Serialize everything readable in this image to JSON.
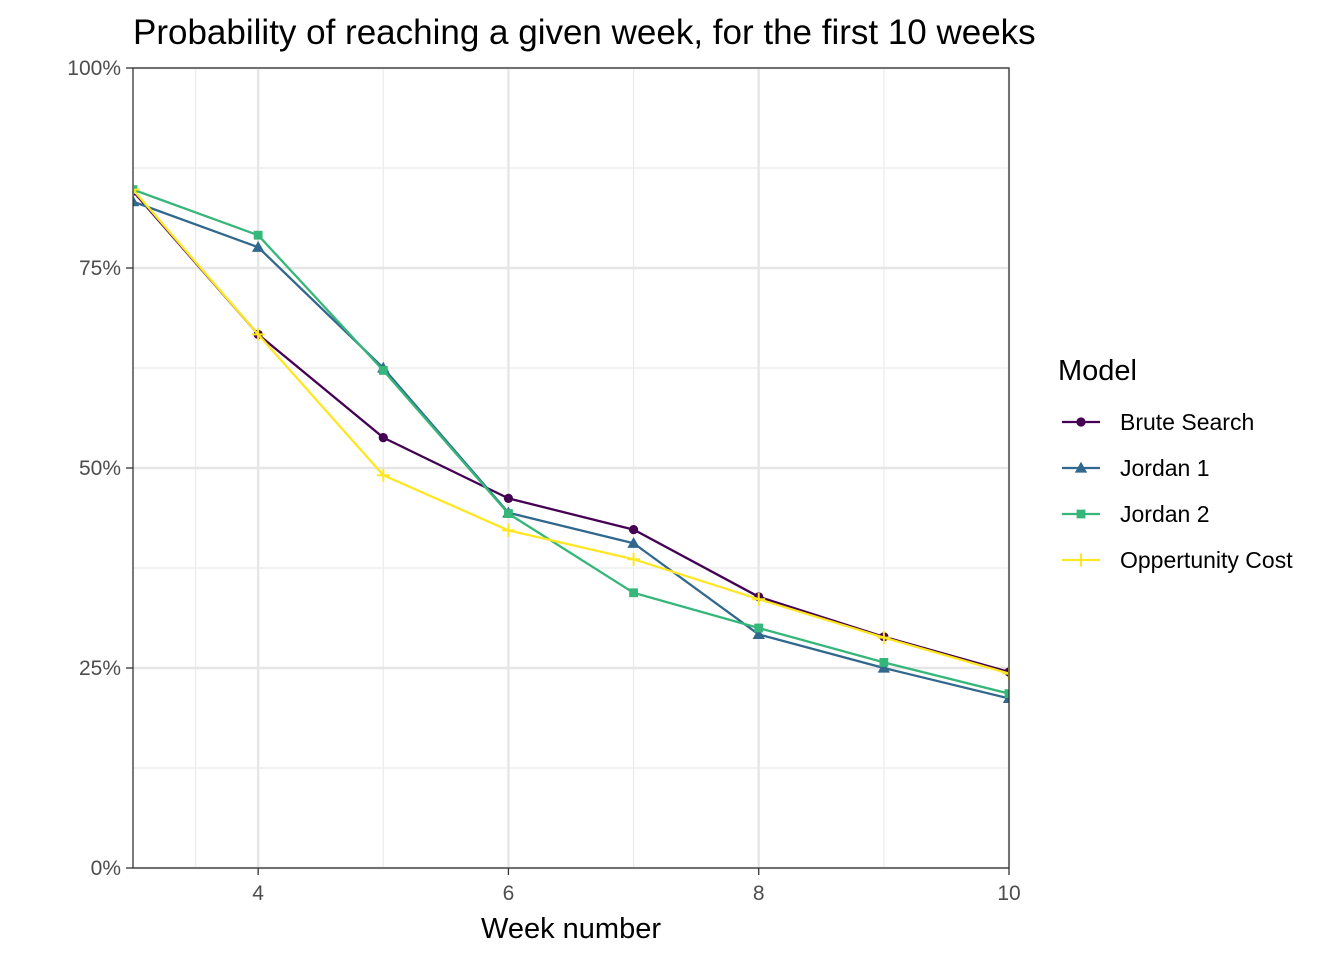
{
  "chart_data": {
    "type": "line",
    "title": "Probability of reaching a given week, for the first 10 weeks",
    "xlabel": "Week number",
    "ylabel": "",
    "xlim": [
      3,
      10
    ],
    "ylim": [
      0,
      1
    ],
    "x_ticks": [
      4,
      6,
      8,
      10
    ],
    "x_tick_labels": [
      "4",
      "6",
      "8",
      "10"
    ],
    "y_ticks": [
      0,
      0.25,
      0.5,
      0.75,
      1
    ],
    "y_tick_labels": [
      "0%",
      "25%",
      "50%",
      "75%",
      "100%"
    ],
    "grid": true,
    "legend": {
      "title": "Model",
      "position": "right"
    },
    "x": [
      3,
      4,
      5,
      6,
      7,
      8,
      9,
      10
    ],
    "series": [
      {
        "name": "Brute Search",
        "color": "#440154",
        "marker": "circle",
        "values": [
          0.846,
          0.667,
          0.538,
          0.462,
          0.423,
          0.339,
          0.289,
          0.245
        ]
      },
      {
        "name": "Jordan 1",
        "color": "#31688e",
        "marker": "triangle",
        "values": [
          0.833,
          0.776,
          0.625,
          0.444,
          0.406,
          0.292,
          0.25,
          0.212
        ]
      },
      {
        "name": "Jordan 2",
        "color": "#35b779",
        "marker": "square",
        "values": [
          0.848,
          0.791,
          0.622,
          0.443,
          0.344,
          0.3,
          0.257,
          0.218
        ]
      },
      {
        "name": "Oppertunity Cost",
        "color": "#fde725",
        "marker": "plus",
        "values": [
          0.848,
          0.667,
          0.491,
          0.422,
          0.386,
          0.336,
          0.288,
          0.243
        ]
      }
    ]
  }
}
